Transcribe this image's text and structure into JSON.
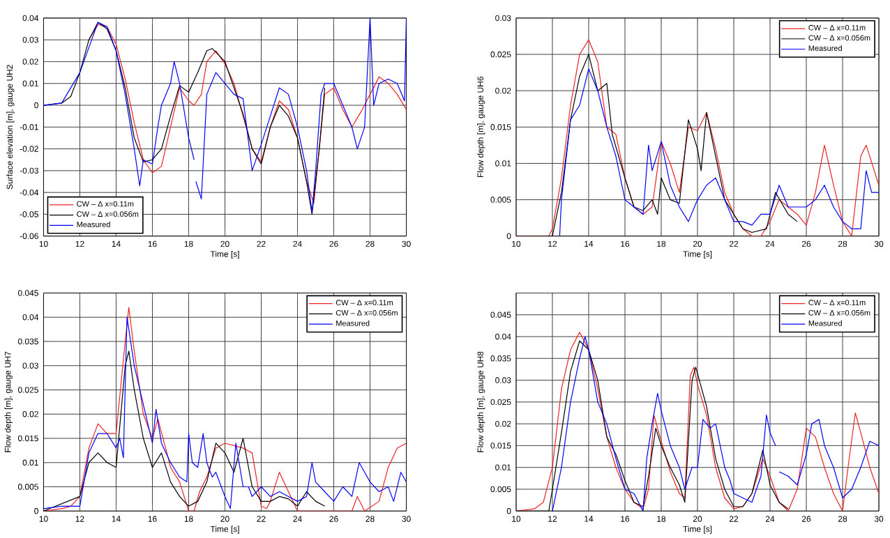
{
  "chart_data": [
    {
      "type": "line",
      "xlabel": "Time [s]",
      "ylabel": "Surface elevation [m], gauge UH2",
      "xlim": [
        10,
        30
      ],
      "ylim": [
        -0.06,
        0.04
      ],
      "xticks": [
        10,
        12,
        14,
        16,
        18,
        20,
        22,
        24,
        26,
        28,
        30
      ],
      "yticks": [
        -0.06,
        -0.05,
        -0.04,
        -0.03,
        -0.02,
        -0.01,
        0,
        0.01,
        0.02,
        0.03,
        0.04
      ],
      "grid": true,
      "legend": "bottom left",
      "series": [
        {
          "name": "CW – Δ x=0.11m",
          "color": "#ee2222",
          "x": [
            12.5,
            13,
            13.5,
            14,
            14.5,
            15,
            15.5,
            16,
            16.5,
            17,
            17.5,
            18,
            18.3,
            18.7,
            19,
            19.5,
            20,
            20.5,
            21,
            21.5,
            22,
            22.5,
            23,
            23.5,
            24,
            24.5,
            24.9,
            25.2,
            25.5,
            26,
            26.5,
            27,
            27.5,
            28,
            28.5,
            29,
            29.5,
            30
          ],
          "values": [
            0.03,
            0.037,
            0.036,
            0.028,
            0.012,
            -0.008,
            -0.025,
            -0.031,
            -0.028,
            -0.01,
            0.008,
            0.002,
            0,
            0.005,
            0.02,
            0.025,
            0.019,
            0.01,
            -0.005,
            -0.02,
            -0.026,
            -0.01,
            0.002,
            -0.002,
            -0.015,
            -0.035,
            -0.045,
            -0.02,
            0.005,
            0.008,
            -0.002,
            -0.01,
            -0.003,
            0.005,
            0.013,
            0.01,
            0.005,
            -0.002
          ]
        },
        {
          "name": "CW – Δ x=0.056m",
          "color": "#000000",
          "x": [
            10,
            11,
            11.5,
            12,
            12.5,
            13,
            13.5,
            14,
            14.5,
            15,
            15.5,
            16,
            16.5,
            17,
            17.5,
            18,
            18.5,
            19,
            19.3,
            20,
            21,
            21.5,
            22,
            22.5,
            23,
            23.5,
            24,
            24.5,
            24.8,
            25.2,
            25.5
          ],
          "values": [
            0,
            0.001,
            0.004,
            0.015,
            0.03,
            0.038,
            0.035,
            0.025,
            0.008,
            -0.015,
            -0.026,
            -0.025,
            -0.02,
            -0.005,
            0.009,
            0.006,
            0.015,
            0.025,
            0.026,
            0.02,
            -0.004,
            -0.02,
            -0.027,
            -0.01,
            0,
            -0.005,
            -0.015,
            -0.035,
            -0.05,
            -0.02,
            0.008
          ]
        },
        {
          "name": "Measured",
          "color": "#0000ff",
          "x": [
            10,
            11,
            12,
            13,
            13.5,
            14,
            14.5,
            15,
            15.3,
            15.5,
            16,
            16.3,
            16.5,
            17,
            17.2,
            17.5,
            18,
            18.3,
            18.35,
            18.4,
            18.7,
            19,
            19.5,
            20,
            20.5,
            21,
            21.5,
            22,
            22.5,
            23,
            23.5,
            24,
            24.5,
            24.8,
            25,
            25.3,
            25.5,
            26,
            26.5,
            27,
            27.3,
            27.7,
            28,
            28.2,
            28.5,
            29,
            29.5,
            29.9,
            30
          ],
          "values": [
            0,
            0.001,
            0.015,
            0.038,
            0.036,
            0.025,
            0.005,
            -0.02,
            -0.037,
            -0.025,
            -0.027,
            -0.01,
            0,
            0.01,
            0.02,
            0.01,
            -0.015,
            -0.025,
            null,
            -0.035,
            -0.043,
            0.005,
            0.015,
            0.01,
            0.005,
            0.003,
            -0.03,
            -0.018,
            -0.005,
            0.008,
            0.005,
            -0.01,
            -0.03,
            -0.049,
            -0.03,
            0.005,
            0.01,
            0.01,
            0,
            -0.01,
            -0.02,
            -0.01,
            0.04,
            0,
            0.01,
            0.012,
            0.01,
            0.002,
            0.04
          ]
        }
      ]
    },
    {
      "type": "line",
      "xlabel": "Time [s]",
      "ylabel": "Flow depth [m], gauge UH6",
      "xlim": [
        10,
        30
      ],
      "ylim": [
        0,
        0.03
      ],
      "xticks": [
        10,
        12,
        14,
        16,
        18,
        20,
        22,
        24,
        26,
        28,
        30
      ],
      "yticks": [
        0,
        0.005,
        0.01,
        0.015,
        0.02,
        0.025,
        0.03
      ],
      "grid": true,
      "legend": "top right",
      "series": [
        {
          "name": "CW – Δ x=0.11m",
          "color": "#ee2222",
          "x": [
            10,
            11.8,
            12,
            12.5,
            13,
            13.5,
            14,
            14.5,
            15,
            15.5,
            16,
            16.5,
            17,
            17.5,
            18,
            18.5,
            19,
            19.5,
            20,
            20.5,
            21,
            21.5,
            22,
            22.5,
            23,
            23.5,
            24,
            24.5,
            25,
            25.5,
            26,
            26.5,
            27,
            27.5,
            28,
            28.5,
            29,
            29.3,
            30
          ],
          "values": [
            0,
            0,
            0.001,
            0.008,
            0.018,
            0.025,
            0.027,
            0.024,
            0.015,
            0.014,
            0.008,
            0.004,
            0.003,
            0.004,
            0.013,
            0.01,
            0.006,
            0.015,
            0.0145,
            0.017,
            0.012,
            0.006,
            0.003,
            0.001,
            0,
            0,
            0.002,
            0.005,
            0.004,
            0.003,
            0.0015,
            0.006,
            0.0125,
            0.007,
            0.002,
            0,
            0.011,
            0.0125,
            0.007
          ]
        },
        {
          "name": "CW – Δ x=0.056m",
          "color": "#000000",
          "x": [
            10,
            12,
            12.5,
            13,
            13.5,
            14,
            14.5,
            15,
            15.3,
            16,
            16.5,
            17,
            17.5,
            17.8,
            18,
            18.5,
            19,
            19.5,
            20,
            20.2,
            20.5,
            21,
            21.5,
            22,
            22.5,
            23,
            23.8,
            24.3,
            25,
            25.5
          ],
          "values": [
            0,
            0,
            0.006,
            0.016,
            0.022,
            0.025,
            0.02,
            0.021,
            0.014,
            0.008,
            0.004,
            0.0035,
            0.005,
            0.003,
            0.008,
            0.005,
            0.0045,
            0.016,
            0.012,
            0.009,
            0.017,
            0.011,
            0.005,
            0.003,
            0.001,
            0.0005,
            0.001,
            0.006,
            0.003,
            0.002
          ]
        },
        {
          "name": "Measured",
          "color": "#0000ff",
          "x": [
            12.4,
            12.5,
            13,
            13.5,
            14,
            14.5,
            15,
            15.5,
            16,
            16.5,
            17,
            17.3,
            17.5,
            18,
            18.5,
            19,
            19.5,
            20,
            20.5,
            21,
            21.5,
            22,
            22.5,
            23,
            23.5,
            24,
            24.5,
            25,
            25.5,
            26,
            26.5,
            27,
            27.5,
            28,
            28.5,
            29,
            29.3,
            29.6,
            30
          ],
          "values": [
            0,
            0.005,
            0.016,
            0.018,
            0.023,
            0.02,
            0.015,
            0.011,
            0.005,
            0.004,
            0.003,
            0.0125,
            0.009,
            0.013,
            0.007,
            0.004,
            0.002,
            0.005,
            0.007,
            0.008,
            0.005,
            0.002,
            0.002,
            0.0015,
            0.003,
            0.003,
            0.007,
            0.004,
            0.004,
            0.004,
            0.005,
            0.007,
            0.004,
            0.002,
            0.001,
            0.001,
            0.009,
            0.006,
            0.006
          ]
        }
      ]
    },
    {
      "type": "line",
      "xlabel": "Time [s]",
      "ylabel": "Flow depth [m], gauge UH7",
      "xlim": [
        10,
        30
      ],
      "ylim": [
        0,
        0.045
      ],
      "xticks": [
        10,
        12,
        14,
        16,
        18,
        20,
        22,
        24,
        26,
        28,
        30
      ],
      "yticks": [
        0,
        0.005,
        0.01,
        0.015,
        0.02,
        0.025,
        0.03,
        0.035,
        0.04,
        0.045
      ],
      "grid": true,
      "legend": "top right",
      "series": [
        {
          "name": "CW – Δ x=0.11m",
          "color": "#ee2222",
          "x": [
            10,
            11,
            11.5,
            12,
            12.5,
            13,
            13.5,
            14,
            14.5,
            14.7,
            15,
            15.5,
            16,
            16.3,
            16.8,
            17,
            17.5,
            18,
            18.3,
            18.6,
            19,
            19.5,
            20,
            21,
            21.5,
            22,
            22.3,
            22.5,
            23,
            23.5,
            24,
            27,
            27.3,
            27.7,
            28.5,
            29,
            29.5,
            30
          ],
          "values": [
            0,
            0.0005,
            0.001,
            0.003,
            0.013,
            0.018,
            0.016,
            0.016,
            0.035,
            0.042,
            0.033,
            0.02,
            0.015,
            0.019,
            0.012,
            0.009,
            0.006,
            0,
            0,
            0.004,
            0.007,
            0.013,
            0.014,
            0.013,
            0.012,
            0.001,
            0.0005,
            0.002,
            0.008,
            0.004,
            0,
            0,
            0.003,
            0,
            0.002,
            0.009,
            0.013,
            0.014
          ]
        },
        {
          "name": "CW – Δ x=0.056m",
          "color": "#000000",
          "x": [
            10,
            12,
            12.5,
            13,
            13.5,
            14,
            14.5,
            14.7,
            15,
            15.5,
            16,
            16.5,
            17,
            17.5,
            18,
            18.5,
            19,
            19.5,
            20,
            20.5,
            21,
            21.5,
            22,
            22.5,
            23,
            23.5,
            24,
            24.5,
            25,
            25.5
          ],
          "values": [
            0,
            0.003,
            0.01,
            0.012,
            0.01,
            0.009,
            0.03,
            0.033,
            0.025,
            0.015,
            0.009,
            0.012,
            0.006,
            0.003,
            0.001,
            0.002,
            0.006,
            0.014,
            0.012,
            0.008,
            0.015,
            0.005,
            0.002,
            0.002,
            0.003,
            0.0025,
            0.001,
            0.004,
            0.002,
            0.001
          ]
        },
        {
          "name": "Measured",
          "color": "#0000ff",
          "x": [
            10,
            11,
            12,
            12.5,
            13,
            13.5,
            14,
            14.2,
            14.4,
            14.6,
            14.8,
            15,
            15.5,
            16,
            16.2,
            16.5,
            17,
            17.5,
            17.9,
            18,
            18.2,
            18.5,
            18.8,
            19,
            19.3,
            19.5,
            20,
            20.3,
            20.6,
            21,
            21.3,
            21.5,
            22,
            22.5,
            23,
            23.5,
            24,
            24.5,
            24.8,
            25,
            25.5,
            26,
            26.5,
            27,
            27.4,
            28,
            28.5,
            29,
            29.3,
            29.7,
            30
          ],
          "values": [
            0.0005,
            0.001,
            0.001,
            0.012,
            0.016,
            0.016,
            0.013,
            0.015,
            0.011,
            0.04,
            0.035,
            0.03,
            0.022,
            0.014,
            0.021,
            0.014,
            0.01,
            0.007,
            0.006,
            0.016,
            0.01,
            0.009,
            0.016,
            0.01,
            0.007,
            0.008,
            0.003,
            0.0005,
            0.014,
            0.005,
            0.005,
            0.003,
            0.005,
            0.003,
            0.004,
            0.003,
            0.002,
            0.003,
            0.01,
            0.006,
            0.004,
            0.002,
            0.005,
            0.003,
            0.01,
            0.006,
            0.004,
            0.005,
            0.002,
            0.008,
            0.006
          ]
        }
      ]
    },
    {
      "type": "line",
      "xlabel": "Time [s]",
      "ylabel": "Flow depth [m], gauge UH8",
      "xlim": [
        10,
        30
      ],
      "ylim": [
        0,
        0.05
      ],
      "xticks": [
        10,
        12,
        14,
        16,
        18,
        20,
        22,
        24,
        26,
        28,
        30
      ],
      "yticks": [
        0,
        0.005,
        0.01,
        0.015,
        0.02,
        0.025,
        0.03,
        0.035,
        0.04,
        0.045
      ],
      "grid": true,
      "legend": "top right",
      "series": [
        {
          "name": "CW – Δ x=0.11m",
          "color": "#ee2222",
          "x": [
            10,
            11,
            11.5,
            12,
            12.5,
            13,
            13.5,
            14,
            14.5,
            15,
            15.5,
            16,
            16.5,
            17,
            17.3,
            17.6,
            18,
            18.5,
            19,
            19.3,
            19.6,
            19.8,
            20,
            20.5,
            21,
            21.5,
            22,
            22.5,
            23,
            23.6,
            24,
            24.5,
            25,
            25.5,
            26,
            26.5,
            27,
            27.5,
            28,
            28.3,
            28.7,
            29,
            29.5,
            30
          ],
          "values": [
            0,
            0.0005,
            0.002,
            0.01,
            0.028,
            0.037,
            0.041,
            0.037,
            0.028,
            0.017,
            0.01,
            0.005,
            0.002,
            0.0005,
            0.005,
            0.022,
            0.016,
            0.009,
            0.004,
            0.003,
            0.031,
            0.033,
            0.029,
            0.022,
            0.01,
            0.003,
            0.0005,
            0.001,
            0.004,
            0.012,
            0.008,
            0.002,
            0,
            0.005,
            0.019,
            0.017,
            0.01,
            0.004,
            0,
            0.01,
            0.0225,
            0.018,
            0.01,
            0.004
          ]
        },
        {
          "name": "CW – Δ x=0.056m",
          "color": "#000000",
          "x": [
            10,
            11.8,
            12,
            12.5,
            13,
            13.5,
            14,
            14.5,
            15,
            15.5,
            16,
            16.5,
            17,
            17.3,
            17.7,
            18,
            18.5,
            19,
            19.3,
            19.7,
            19.9,
            20.5,
            21,
            21.5,
            22,
            22.5,
            23,
            23.6,
            24,
            24.5,
            25
          ],
          "values": [
            0,
            0,
            0.005,
            0.018,
            0.032,
            0.039,
            0.037,
            0.03,
            0.017,
            0.013,
            0.007,
            0.002,
            0.001,
            0.008,
            0.019,
            0.015,
            0.01,
            0.006,
            0.002,
            0.03,
            0.033,
            0.024,
            0.012,
            0.005,
            0.001,
            0.001,
            0.004,
            0.014,
            0.006,
            0.002,
            0.0005
          ]
        },
        {
          "name": "Measured",
          "color": "#0000ff",
          "x": [
            12,
            12.5,
            13,
            13.5,
            13.8,
            14,
            14.5,
            15,
            15.5,
            16,
            16.5,
            17,
            17.2,
            17.5,
            17.8,
            18,
            18.5,
            19,
            19.3,
            19.7,
            20,
            20.3,
            20.7,
            21,
            21.5,
            21.8,
            22,
            22.5,
            23,
            23.5,
            23.8,
            24,
            24.3,
            24.4,
            24.5,
            25,
            25.5,
            26,
            26.3,
            26.7,
            27,
            27.5,
            28,
            28.5,
            29,
            29.5,
            30
          ],
          "values": [
            0,
            0.01,
            0.025,
            0.035,
            0.04,
            0.037,
            0.025,
            0.02,
            0.012,
            0.005,
            0.004,
            0,
            0.012,
            0.02,
            0.027,
            0.023,
            0.015,
            0.01,
            0.005,
            0.01,
            0.01,
            0.021,
            0.019,
            0.02,
            0.01,
            0.007,
            0.004,
            0.003,
            0.002,
            0.008,
            0.022,
            0.018,
            0.015,
            null,
            0.009,
            0.008,
            0.006,
            0.013,
            0.02,
            0.021,
            0.015,
            0.01,
            0.003,
            0.005,
            0.01,
            0.016,
            0.015
          ]
        }
      ]
    }
  ]
}
